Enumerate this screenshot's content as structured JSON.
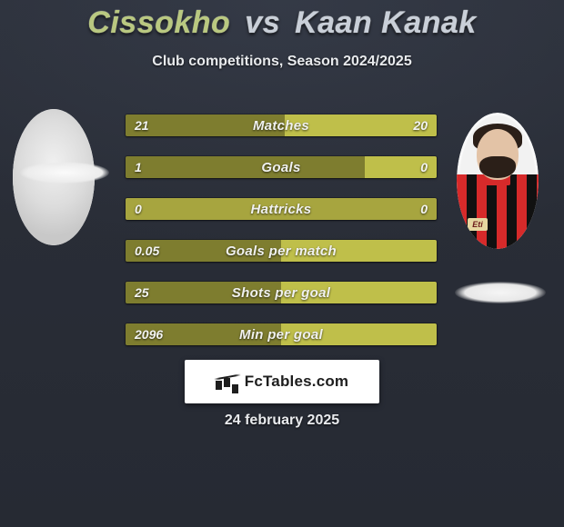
{
  "title": {
    "player1": "Cissokho",
    "vs": "vs",
    "player2": "Kaan Kanak"
  },
  "subtitle": "Club competitions, Season 2024/2025",
  "brand": "FcTables.com",
  "date": "24 february 2025",
  "colors": {
    "left_bar": "#7e7d2f",
    "right_bar": "#bfbf4a",
    "neutral_bar": "#a7a53f",
    "track": "#3a3f4a"
  },
  "player_right_badge": "Eti",
  "rows": [
    {
      "label": "Matches",
      "left_val": "21",
      "right_val": "20",
      "left_pct": 51.2,
      "right_pct": 48.8
    },
    {
      "label": "Goals",
      "left_val": "1",
      "right_val": "0",
      "left_pct": 77.0,
      "right_pct": 23.0
    },
    {
      "label": "Hattricks",
      "left_val": "0",
      "right_val": "0",
      "left_pct": 50.0,
      "right_pct": 50.0
    },
    {
      "label": "Goals per match",
      "left_val": "0.05",
      "right_val": "",
      "left_pct": 100.0,
      "right_pct": 0.0
    },
    {
      "label": "Shots per goal",
      "left_val": "25",
      "right_val": "",
      "left_pct": 100.0,
      "right_pct": 0.0
    },
    {
      "label": "Min per goal",
      "left_val": "2096",
      "right_val": "",
      "left_pct": 100.0,
      "right_pct": 0.0
    }
  ]
}
